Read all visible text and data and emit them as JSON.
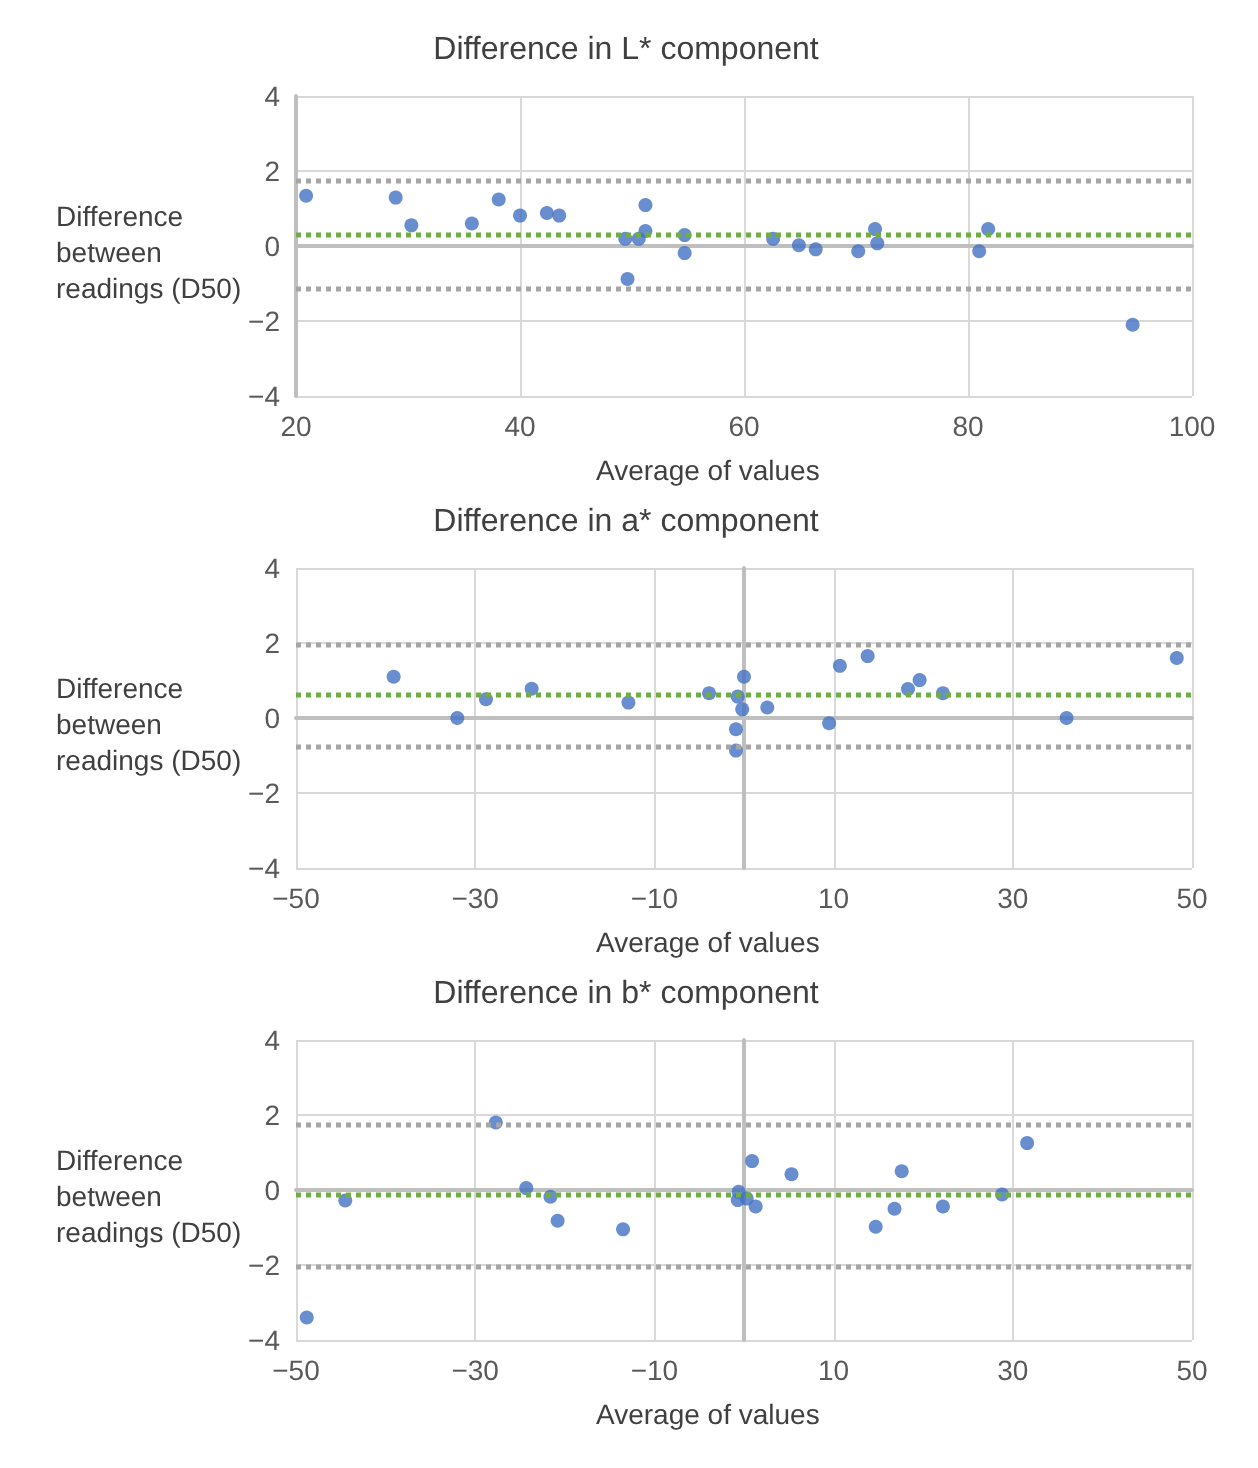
{
  "chart_data": [
    {
      "type": "scatter",
      "title": "Difference in L* component",
      "xlabel": "Average of values",
      "ylabel": "Difference between readings (D50)",
      "xlim": [
        20,
        100
      ],
      "xticks": [
        20,
        40,
        60,
        80,
        100
      ],
      "ylim": [
        -4,
        4
      ],
      "yticks": [
        -4,
        -2,
        0,
        2,
        4
      ],
      "grid": true,
      "marker": "circle",
      "series": [
        {
          "color": "#4472c4",
          "x": [
            20.9,
            28.9,
            30.3,
            35.7,
            38.1,
            40.0,
            42.4,
            43.5,
            49.4,
            49.6,
            50.6,
            51.2,
            51.2,
            54.7,
            54.7,
            62.6,
            64.9,
            66.4,
            70.2,
            71.7,
            71.9,
            81.0,
            81.8,
            94.7
          ],
          "values": [
            1.34,
            1.29,
            0.55,
            0.6,
            1.24,
            0.81,
            0.88,
            0.81,
            0.19,
            -0.88,
            0.19,
            1.09,
            0.4,
            0.29,
            -0.19,
            0.19,
            0.02,
            -0.09,
            -0.14,
            0.45,
            0.07,
            -0.14,
            0.45,
            -2.1
          ]
        }
      ],
      "ref_lines": [
        {
          "axis": "y",
          "value": 1.75,
          "color": "#a6a6a6",
          "line_style": "dotted"
        },
        {
          "axis": "y",
          "value": 0.3,
          "color": "#70ad47",
          "line_style": "dotted"
        },
        {
          "axis": "y",
          "value": -1.15,
          "color": "#a6a6a6",
          "line_style": "dotted"
        }
      ]
    },
    {
      "type": "scatter",
      "title": "Difference in a* component",
      "xlabel": "Average of values",
      "ylabel": "Difference between readings (D50)",
      "xlim": [
        -50,
        50
      ],
      "xticks": [
        -50,
        -30,
        -10,
        10,
        30,
        50
      ],
      "ylim": [
        -4,
        4
      ],
      "yticks": [
        -4,
        -2,
        0,
        2,
        4
      ],
      "grid": true,
      "marker": "circle",
      "series": [
        {
          "color": "#4472c4",
          "x": [
            -39.1,
            -32.0,
            -28.8,
            -23.7,
            -12.9,
            -3.9,
            -0.7,
            0.0,
            -0.9,
            -0.9,
            -0.2,
            2.6,
            9.5,
            10.7,
            13.8,
            18.3,
            19.6,
            22.2,
            36.0,
            48.3
          ],
          "values": [
            1.1,
            0.0,
            0.5,
            0.78,
            0.41,
            0.66,
            0.57,
            1.1,
            -0.3,
            -0.87,
            0.23,
            0.28,
            -0.14,
            1.39,
            1.65,
            0.77,
            1.01,
            0.66,
            0.0,
            1.6
          ]
        }
      ],
      "ref_lines": [
        {
          "axis": "y",
          "value": 1.96,
          "color": "#a6a6a6",
          "line_style": "dotted"
        },
        {
          "axis": "y",
          "value": 0.64,
          "color": "#70ad47",
          "line_style": "dotted"
        },
        {
          "axis": "y",
          "value": -0.75,
          "color": "#a6a6a6",
          "line_style": "dotted"
        }
      ]
    },
    {
      "type": "scatter",
      "title": "Difference in b* component",
      "xlabel": "Average of values",
      "ylabel": "Difference between readings (D50)",
      "xlim": [
        -50,
        50
      ],
      "xticks": [
        -50,
        -30,
        -10,
        10,
        30,
        50
      ],
      "ylim": [
        -4,
        4
      ],
      "yticks": [
        -4,
        -2,
        0,
        2,
        4
      ],
      "grid": true,
      "marker": "circle",
      "series": [
        {
          "color": "#4472c4",
          "x": [
            -48.8,
            -44.5,
            -27.7,
            -24.3,
            -21.6,
            -20.8,
            -13.5,
            -0.6,
            -0.7,
            0.3,
            0.9,
            1.3,
            5.3,
            14.7,
            16.8,
            17.6,
            22.2,
            28.8,
            31.6
          ],
          "values": [
            -3.4,
            -0.28,
            1.8,
            0.05,
            -0.18,
            -0.82,
            -1.05,
            -0.05,
            -0.27,
            -0.23,
            0.77,
            -0.44,
            0.42,
            -0.98,
            -0.5,
            0.5,
            -0.44,
            -0.12,
            1.25
          ]
        }
      ],
      "ref_lines": [
        {
          "axis": "y",
          "value": 1.76,
          "color": "#a6a6a6",
          "line_style": "dotted"
        },
        {
          "axis": "y",
          "value": -0.14,
          "color": "#70ad47",
          "line_style": "dotted"
        },
        {
          "axis": "y",
          "value": -2.05,
          "color": "#a6a6a6",
          "line_style": "dotted"
        }
      ]
    }
  ]
}
